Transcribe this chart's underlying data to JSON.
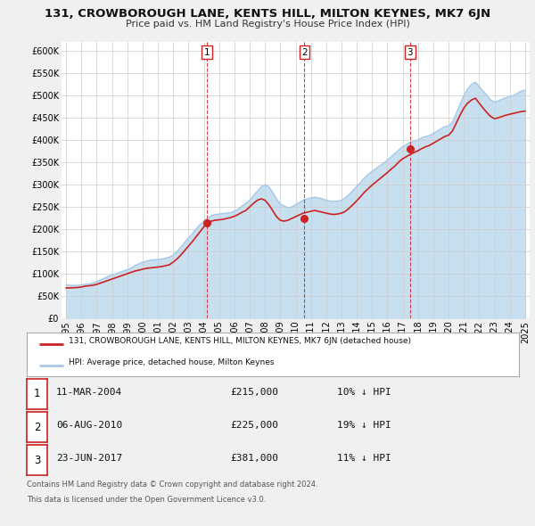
{
  "title": "131, CROWBOROUGH LANE, KENTS HILL, MILTON KEYNES, MK7 6JN",
  "subtitle": "Price paid vs. HM Land Registry's House Price Index (HPI)",
  "hpi_color": "#a8c8e8",
  "hpi_fill_color": "#c8dff0",
  "price_color": "#cc2222",
  "background_color": "#f0f0f0",
  "plot_bg_color": "#ffffff",
  "grid_color": "#cccccc",
  "ylim": [
    0,
    620000
  ],
  "yticks": [
    0,
    50000,
    100000,
    150000,
    200000,
    250000,
    300000,
    350000,
    400000,
    450000,
    500000,
    550000,
    600000
  ],
  "ytick_labels": [
    "£0",
    "£50K",
    "£100K",
    "£150K",
    "£200K",
    "£250K",
    "£300K",
    "£350K",
    "£400K",
    "£450K",
    "£500K",
    "£550K",
    "£600K"
  ],
  "xlim_start": 1994.7,
  "xlim_end": 2025.3,
  "xticks": [
    1995,
    1996,
    1997,
    1998,
    1999,
    2000,
    2001,
    2002,
    2003,
    2004,
    2005,
    2006,
    2007,
    2008,
    2009,
    2010,
    2011,
    2012,
    2013,
    2014,
    2015,
    2016,
    2017,
    2018,
    2019,
    2020,
    2021,
    2022,
    2023,
    2024,
    2025
  ],
  "legend_price_label": "131, CROWBOROUGH LANE, KENTS HILL, MILTON KEYNES, MK7 6JN (detached house)",
  "legend_hpi_label": "HPI: Average price, detached house, Milton Keynes",
  "sales": [
    {
      "num": 1,
      "date": "11-MAR-2004",
      "date_x": 2004.19,
      "price": 215000,
      "pct": "10%",
      "direction": "↓"
    },
    {
      "num": 2,
      "date": "06-AUG-2010",
      "date_x": 2010.58,
      "price": 225000,
      "pct": "19%",
      "direction": "↓"
    },
    {
      "num": 3,
      "date": "23-JUN-2017",
      "date_x": 2017.47,
      "price": 381000,
      "pct": "11%",
      "direction": "↓"
    }
  ],
  "footer_line1": "Contains HM Land Registry data © Crown copyright and database right 2024.",
  "footer_line2": "This data is licensed under the Open Government Licence v3.0.",
  "hpi_data_x": [
    1995.0,
    1995.25,
    1995.5,
    1995.75,
    1996.0,
    1996.25,
    1996.5,
    1996.75,
    1997.0,
    1997.25,
    1997.5,
    1997.75,
    1998.0,
    1998.25,
    1998.5,
    1998.75,
    1999.0,
    1999.25,
    1999.5,
    1999.75,
    2000.0,
    2000.25,
    2000.5,
    2000.75,
    2001.0,
    2001.25,
    2001.5,
    2001.75,
    2002.0,
    2002.25,
    2002.5,
    2002.75,
    2003.0,
    2003.25,
    2003.5,
    2003.75,
    2004.0,
    2004.25,
    2004.5,
    2004.75,
    2005.0,
    2005.25,
    2005.5,
    2005.75,
    2006.0,
    2006.25,
    2006.5,
    2006.75,
    2007.0,
    2007.25,
    2007.5,
    2007.75,
    2008.0,
    2008.25,
    2008.5,
    2008.75,
    2009.0,
    2009.25,
    2009.5,
    2009.75,
    2010.0,
    2010.25,
    2010.5,
    2010.75,
    2011.0,
    2011.25,
    2011.5,
    2011.75,
    2012.0,
    2012.25,
    2012.5,
    2012.75,
    2013.0,
    2013.25,
    2013.5,
    2013.75,
    2014.0,
    2014.25,
    2014.5,
    2014.75,
    2015.0,
    2015.25,
    2015.5,
    2015.75,
    2016.0,
    2016.25,
    2016.5,
    2016.75,
    2017.0,
    2017.25,
    2017.5,
    2017.75,
    2018.0,
    2018.25,
    2018.5,
    2018.75,
    2019.0,
    2019.25,
    2019.5,
    2019.75,
    2020.0,
    2020.25,
    2020.5,
    2020.75,
    2021.0,
    2021.25,
    2021.5,
    2021.75,
    2022.0,
    2022.25,
    2022.5,
    2022.75,
    2023.0,
    2023.25,
    2023.5,
    2023.75,
    2024.0,
    2024.25,
    2024.5,
    2024.75,
    2025.0
  ],
  "hpi_data_y": [
    75000,
    74000,
    73500,
    74000,
    75000,
    76000,
    77000,
    79000,
    82000,
    86000,
    90000,
    94000,
    97000,
    100000,
    103000,
    106000,
    109000,
    113000,
    118000,
    122000,
    126000,
    128000,
    130000,
    131000,
    132000,
    133000,
    135000,
    137000,
    142000,
    150000,
    160000,
    170000,
    180000,
    190000,
    200000,
    210000,
    218000,
    225000,
    230000,
    233000,
    234000,
    235000,
    236000,
    237000,
    240000,
    245000,
    252000,
    258000,
    265000,
    275000,
    285000,
    295000,
    300000,
    295000,
    282000,
    268000,
    256000,
    252000,
    248000,
    250000,
    255000,
    260000,
    265000,
    268000,
    270000,
    272000,
    270000,
    268000,
    265000,
    263000,
    262000,
    263000,
    265000,
    270000,
    278000,
    287000,
    296000,
    305000,
    315000,
    323000,
    330000,
    336000,
    342000,
    348000,
    355000,
    363000,
    370000,
    378000,
    385000,
    390000,
    395000,
    398000,
    400000,
    405000,
    408000,
    410000,
    415000,
    420000,
    425000,
    430000,
    432000,
    440000,
    460000,
    480000,
    500000,
    515000,
    525000,
    530000,
    520000,
    510000,
    500000,
    490000,
    485000,
    488000,
    492000,
    495000,
    498000,
    500000,
    505000,
    510000,
    512000
  ],
  "price_data_x": [
    1995.0,
    1995.25,
    1995.5,
    1995.75,
    1996.0,
    1996.25,
    1996.5,
    1996.75,
    1997.0,
    1997.25,
    1997.5,
    1997.75,
    1998.0,
    1998.25,
    1998.5,
    1998.75,
    1999.0,
    1999.25,
    1999.5,
    1999.75,
    2000.0,
    2000.25,
    2000.5,
    2000.75,
    2001.0,
    2001.25,
    2001.5,
    2001.75,
    2002.0,
    2002.25,
    2002.5,
    2002.75,
    2003.0,
    2003.25,
    2003.5,
    2003.75,
    2004.0,
    2004.25,
    2004.5,
    2004.75,
    2005.0,
    2005.25,
    2005.5,
    2005.75,
    2006.0,
    2006.25,
    2006.5,
    2006.75,
    2007.0,
    2007.25,
    2007.5,
    2007.75,
    2008.0,
    2008.25,
    2008.5,
    2008.75,
    2009.0,
    2009.25,
    2009.5,
    2009.75,
    2010.0,
    2010.25,
    2010.5,
    2010.75,
    2011.0,
    2011.25,
    2011.5,
    2011.75,
    2012.0,
    2012.25,
    2012.5,
    2012.75,
    2013.0,
    2013.25,
    2013.5,
    2013.75,
    2014.0,
    2014.25,
    2014.5,
    2014.75,
    2015.0,
    2015.25,
    2015.5,
    2015.75,
    2016.0,
    2016.25,
    2016.5,
    2016.75,
    2017.0,
    2017.25,
    2017.5,
    2017.75,
    2018.0,
    2018.25,
    2018.5,
    2018.75,
    2019.0,
    2019.25,
    2019.5,
    2019.75,
    2020.0,
    2020.25,
    2020.5,
    2020.75,
    2021.0,
    2021.25,
    2021.5,
    2021.75,
    2022.0,
    2022.25,
    2022.5,
    2022.75,
    2023.0,
    2023.25,
    2023.5,
    2023.75,
    2024.0,
    2024.25,
    2024.5,
    2024.75,
    2025.0
  ],
  "price_data_y": [
    68000,
    68000,
    68500,
    69000,
    70000,
    72000,
    73000,
    74000,
    76000,
    79000,
    82000,
    85000,
    88000,
    91000,
    94000,
    97000,
    100000,
    103000,
    106000,
    108000,
    110000,
    112000,
    113000,
    114000,
    115000,
    116000,
    118000,
    120000,
    126000,
    133000,
    142000,
    152000,
    162000,
    172000,
    183000,
    194000,
    205000,
    215000,
    218000,
    220000,
    221000,
    222000,
    224000,
    226000,
    229000,
    233000,
    238000,
    242000,
    250000,
    258000,
    265000,
    268000,
    265000,
    255000,
    242000,
    228000,
    220000,
    218000,
    220000,
    224000,
    228000,
    232000,
    236000,
    238000,
    240000,
    242000,
    240000,
    238000,
    236000,
    234000,
    233000,
    234000,
    236000,
    240000,
    247000,
    255000,
    264000,
    273000,
    283000,
    291000,
    299000,
    306000,
    313000,
    320000,
    327000,
    335000,
    342000,
    351000,
    358000,
    363000,
    368000,
    372000,
    376000,
    381000,
    385000,
    388000,
    393000,
    398000,
    403000,
    408000,
    411000,
    420000,
    438000,
    456000,
    472000,
    483000,
    490000,
    494000,
    483000,
    472000,
    462000,
    453000,
    448000,
    450000,
    453000,
    456000,
    458000,
    460000,
    462000,
    464000,
    465000
  ]
}
